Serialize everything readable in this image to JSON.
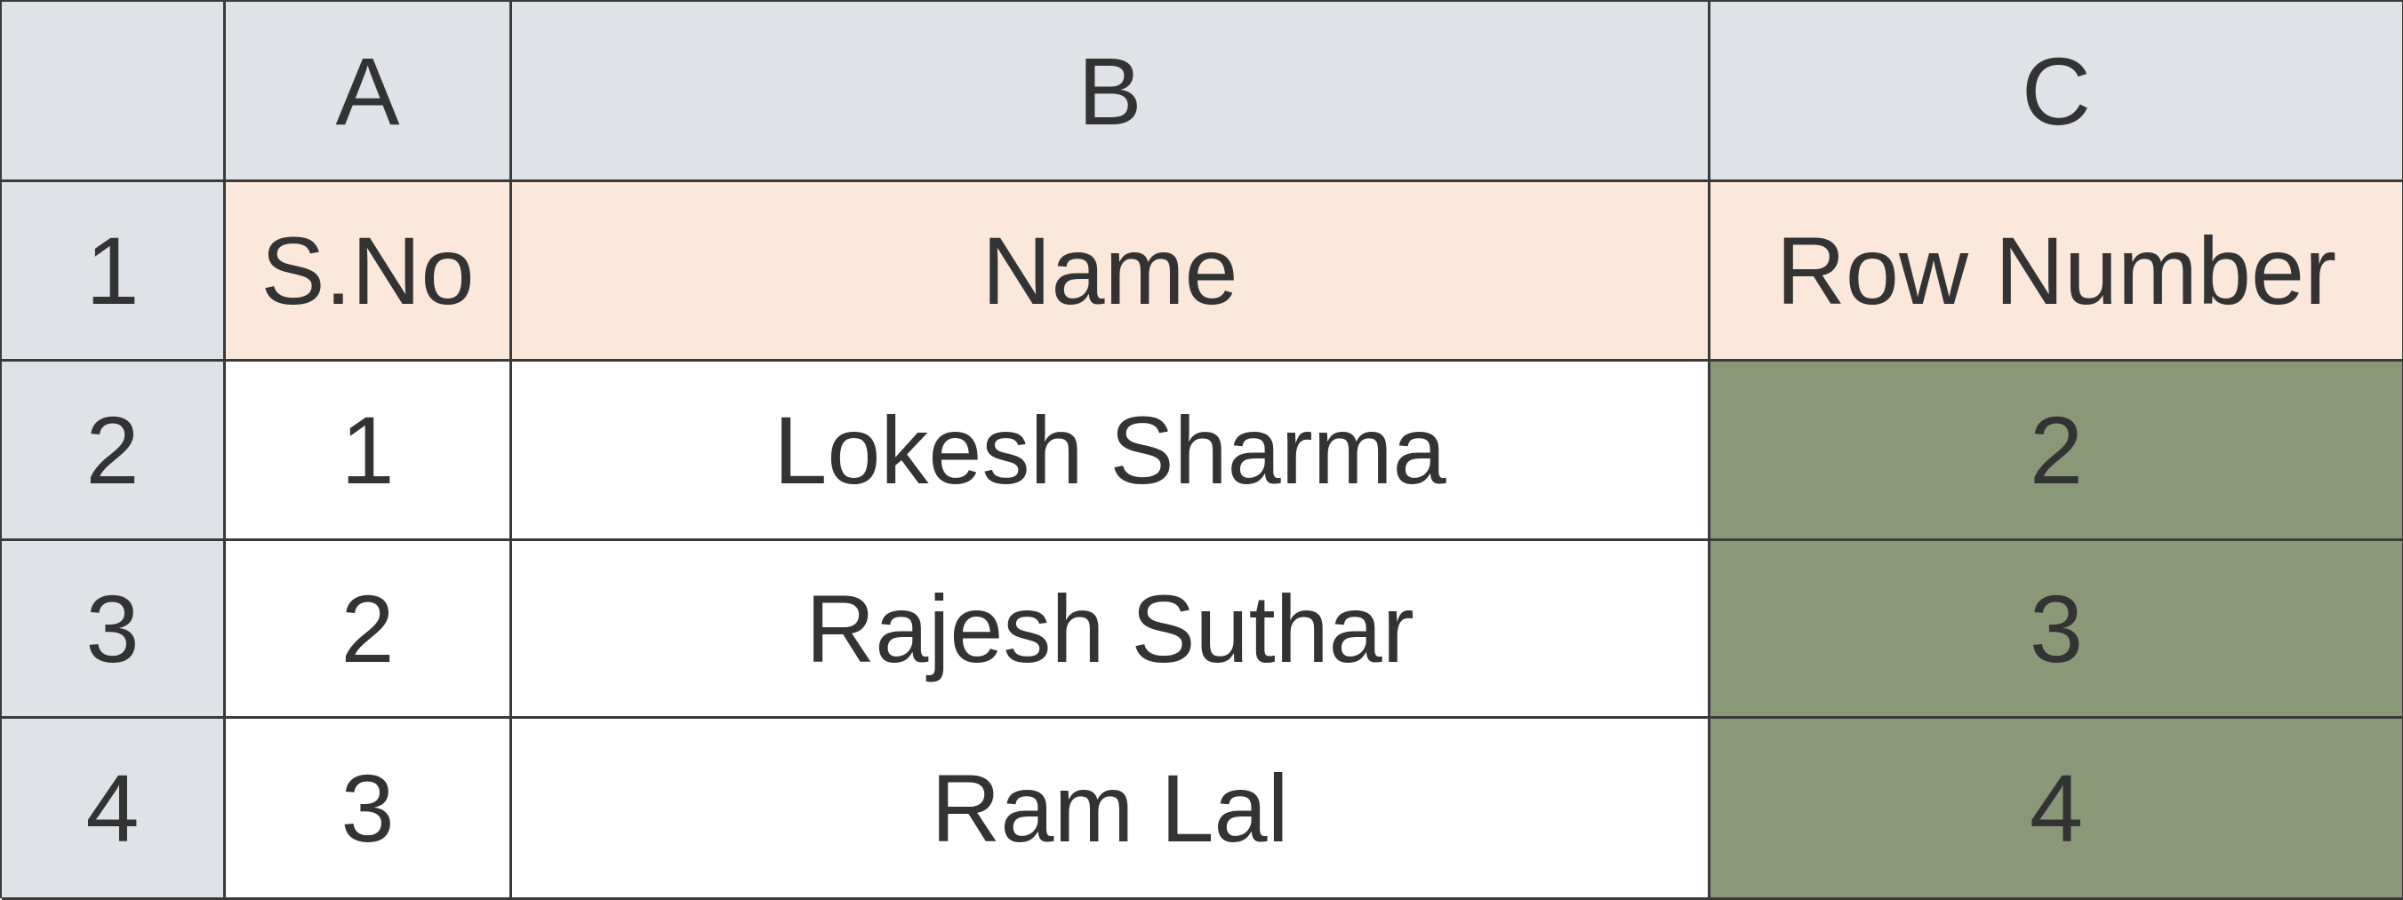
{
  "colors": {
    "header_bg": "#dfe2e6",
    "title_row_bg": "#fce8da",
    "highlight_bg": "#8a9878",
    "text": "#333333"
  },
  "columns": [
    "A",
    "B",
    "C"
  ],
  "rows": [
    "1",
    "2",
    "3",
    "4"
  ],
  "cells": [
    [
      "S.No",
      "Name",
      "Row Number"
    ],
    [
      "1",
      "Lokesh Sharma",
      "2"
    ],
    [
      "2",
      "Rajesh Suthar",
      "3"
    ],
    [
      "3",
      "Ram Lal",
      "4"
    ]
  ]
}
